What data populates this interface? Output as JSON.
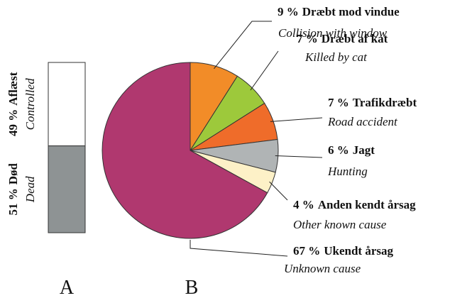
{
  "chart_data": [
    {
      "type": "stacked_bar",
      "panel": "A",
      "series": [
        {
          "name": "Aflæst",
          "name_en": "Controlled",
          "values": [
            49
          ],
          "value_labels": [
            "49 %"
          ],
          "color": "#ffffff"
        },
        {
          "name": "Død",
          "name_en": "Dead",
          "values": [
            51
          ],
          "value_labels": [
            "51 %"
          ],
          "color": "#8e9394"
        }
      ]
    },
    {
      "type": "pie",
      "panel": "B",
      "categories": [
        "Dræbt mod vindue",
        "Dræbt af kat",
        "Trafikdræbt",
        "Jagt",
        "Anden kendt årsag",
        "Ukendt årsag"
      ],
      "categories_en": [
        "Collision with window",
        "Killed by cat",
        "Road accident",
        "Hunting",
        "Other known cause",
        "Unknown cause"
      ],
      "values": [
        9,
        7,
        7,
        6,
        4,
        67
      ],
      "value_labels": [
        "9 %",
        "7 %",
        "7 %",
        "6 %",
        "4 %",
        "67 %"
      ],
      "colors": [
        "#f28c28",
        "#9dc93b",
        "#ef6c2a",
        "#b0b4b5",
        "#fdf1c7",
        "#b0386f"
      ]
    }
  ]
}
